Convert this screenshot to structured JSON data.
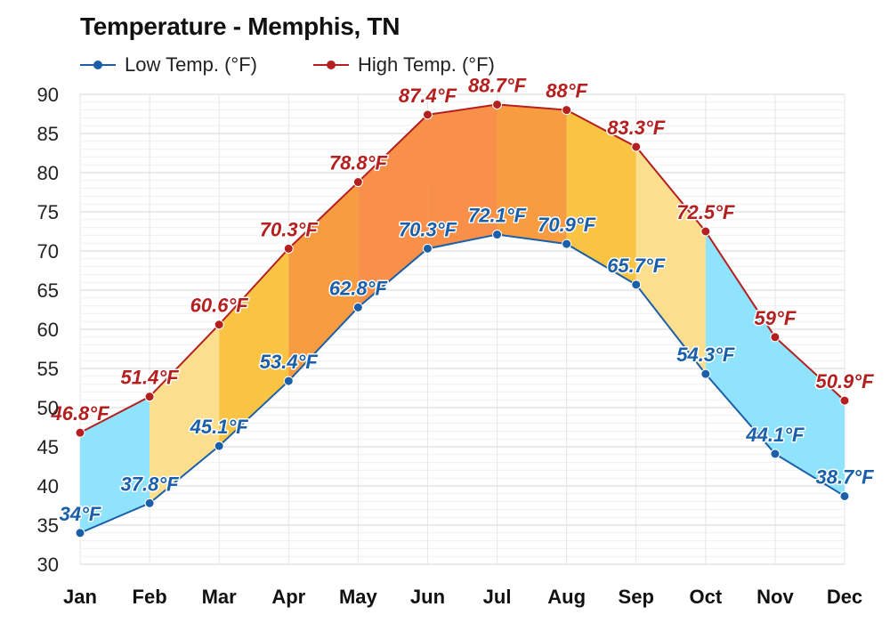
{
  "chart_data": {
    "type": "line",
    "title": "Temperature - Memphis, TN",
    "categories": [
      "Jan",
      "Feb",
      "Mar",
      "Apr",
      "May",
      "Jun",
      "Jul",
      "Aug",
      "Sep",
      "Oct",
      "Nov",
      "Dec"
    ],
    "series": [
      {
        "name": "Low Temp. (°F)",
        "color": "#1a5fa8",
        "values": [
          34,
          37.8,
          45.1,
          53.4,
          62.8,
          70.3,
          72.1,
          70.9,
          65.7,
          54.3,
          44.1,
          38.7
        ],
        "labels": [
          "34°F",
          "37.8°F",
          "45.1°F",
          "53.4°F",
          "62.8°F",
          "70.3°F",
          "72.1°F",
          "70.9°F",
          "65.7°F",
          "54.3°F",
          "44.1°F",
          "38.7°F"
        ]
      },
      {
        "name": "High Temp. (°F)",
        "color": "#b41f1f",
        "values": [
          46.8,
          51.4,
          60.6,
          70.3,
          78.8,
          87.4,
          88.7,
          88,
          83.3,
          72.5,
          59,
          50.9
        ],
        "labels": [
          "46.8°F",
          "51.4°F",
          "60.6°F",
          "70.3°F",
          "78.8°F",
          "87.4°F",
          "88.7°F",
          "88°F",
          "83.3°F",
          "72.5°F",
          "59°F",
          "50.9°F"
        ]
      }
    ],
    "band_colors": [
      "#8fe3fd",
      "#fbdf8f",
      "#f9c443",
      "#f89c42",
      "#f9904a",
      "#f9904a",
      "#f89c42",
      "#f9c443",
      "#fbdf8f",
      "#8fe3fd",
      "#8fe3fd"
    ],
    "ylim": [
      30,
      90
    ],
    "yticks": [
      30,
      35,
      40,
      45,
      50,
      55,
      60,
      65,
      70,
      75,
      80,
      85,
      90
    ],
    "grid": true,
    "legend": "top-left"
  }
}
